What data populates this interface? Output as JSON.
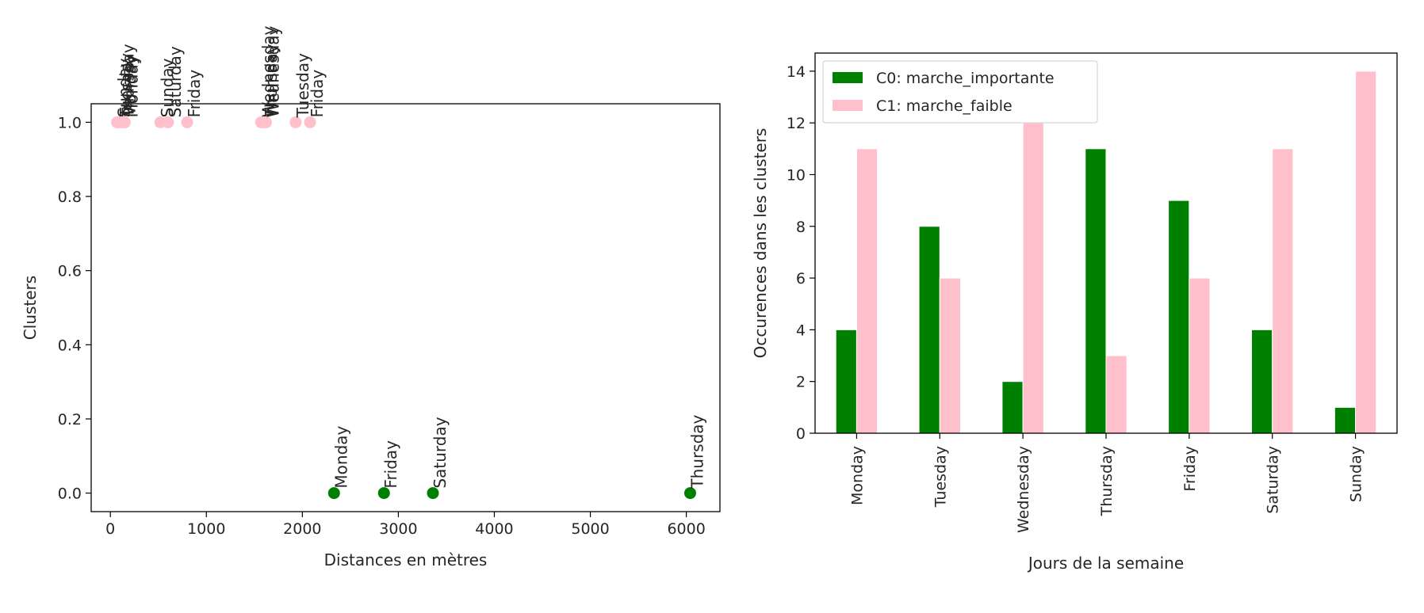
{
  "chart_data": [
    {
      "type": "scatter",
      "title": "",
      "xlabel": "Distances en mètres",
      "ylabel": "Clusters",
      "xlim": [
        -200,
        6350
      ],
      "ylim": [
        -0.05,
        1.05
      ],
      "xticks": [
        0,
        1000,
        2000,
        3000,
        4000,
        5000,
        6000
      ],
      "yticks": [
        0.0,
        0.2,
        0.4,
        0.6,
        0.8,
        1.0
      ],
      "xtick_labels": [
        "0",
        "1000",
        "2000",
        "3000",
        "4000",
        "5000",
        "6000"
      ],
      "ytick_labels": [
        "0.0",
        "0.2",
        "0.4",
        "0.6",
        "0.8",
        "1.0"
      ],
      "grid": false,
      "colors": {
        "0": "#008000",
        "1": "#ffc0cb"
      },
      "points": [
        {
          "x": 2330,
          "y": 0,
          "cluster": 0,
          "label": "Monday"
        },
        {
          "x": 2850,
          "y": 0,
          "cluster": 0,
          "label": "Friday"
        },
        {
          "x": 3360,
          "y": 0,
          "cluster": 0,
          "label": "Saturday"
        },
        {
          "x": 6040,
          "y": 0,
          "cluster": 0,
          "label": "Thursday"
        },
        {
          "x": 70,
          "y": 1,
          "cluster": 1,
          "label": "Sunday"
        },
        {
          "x": 90,
          "y": 1,
          "cluster": 1,
          "label": "Tuesday"
        },
        {
          "x": 110,
          "y": 1,
          "cluster": 1,
          "label": "Thursday"
        },
        {
          "x": 130,
          "y": 1,
          "cluster": 1,
          "label": "Monday"
        },
        {
          "x": 150,
          "y": 1,
          "cluster": 1,
          "label": "Monday"
        },
        {
          "x": 520,
          "y": 1,
          "cluster": 1,
          "label": "Sunday"
        },
        {
          "x": 600,
          "y": 1,
          "cluster": 1,
          "label": "Saturday"
        },
        {
          "x": 800,
          "y": 1,
          "cluster": 1,
          "label": "Friday"
        },
        {
          "x": 1570,
          "y": 1,
          "cluster": 1,
          "label": "Wednesday"
        },
        {
          "x": 1600,
          "y": 1,
          "cluster": 1,
          "label": "Thursday"
        },
        {
          "x": 1620,
          "y": 1,
          "cluster": 1,
          "label": "Wednesday"
        },
        {
          "x": 1930,
          "y": 1,
          "cluster": 1,
          "label": "Tuesday"
        },
        {
          "x": 2080,
          "y": 1,
          "cluster": 1,
          "label": "Friday"
        }
      ]
    },
    {
      "type": "bar",
      "title": "",
      "xlabel": "Jours de la semaine",
      "ylabel": "Occurences dans les clusters",
      "categories": [
        "Monday",
        "Tuesday",
        "Wednesday",
        "Thursday",
        "Friday",
        "Saturday",
        "Sunday"
      ],
      "ylim": [
        0,
        14.7
      ],
      "yticks": [
        0,
        2,
        4,
        6,
        8,
        10,
        12,
        14
      ],
      "ytick_labels": [
        "0",
        "2",
        "4",
        "6",
        "8",
        "10",
        "12",
        "14"
      ],
      "grid": false,
      "legend_position": "upper-left",
      "series": [
        {
          "name": "C0: marche_importante",
          "color": "#008000",
          "values": [
            4,
            8,
            2,
            11,
            9,
            4,
            1
          ]
        },
        {
          "name": "C1: marche_faible",
          "color": "#ffc0cb",
          "values": [
            11,
            6,
            12,
            3,
            6,
            11,
            14
          ]
        }
      ]
    }
  ]
}
